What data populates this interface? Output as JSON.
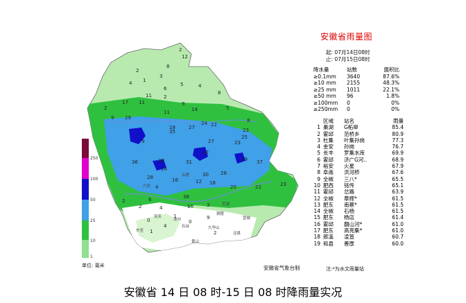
{
  "map": {
    "title": "安徽省雨量图",
    "period": {
      "start_label": "起: 07月14日08时",
      "end_label": "止: 07月15日08时"
    },
    "stats_header": [
      "降水量",
      "站数",
      "面积比"
    ],
    "stats": [
      [
        "≥0.1mm",
        "3640",
        "87.6%"
      ],
      [
        "≥10 mm",
        "2155",
        "48.3%"
      ],
      [
        "≥25 mm",
        "1011",
        "22.1%"
      ],
      [
        "≥50 mm",
        "96",
        "1.8%"
      ],
      [
        "≥100mm",
        "0",
        "0%"
      ],
      [
        "≥250mm",
        "0",
        "0%"
      ]
    ],
    "ranking_header": [
      "区域",
      "站名",
      "雨量"
    ],
    "ranking": [
      [
        "1",
        "巢湖",
        "G柘皋",
        "85.4"
      ],
      [
        "2",
        "霍邱",
        "范桥乡",
        "80.9"
      ],
      [
        "3",
        "杜集",
        "叶集孙岗",
        "77.3"
      ],
      [
        "4",
        "金安",
        "孙岗",
        "76.7"
      ],
      [
        "5",
        "长丰",
        "罗集水库",
        "69.9"
      ],
      [
        "6",
        "霍邱",
        "济广G河..",
        "68.9"
      ],
      [
        "7",
        "裕安",
        "火星",
        "67.9"
      ],
      [
        "8",
        "阜南",
        "洪河桥",
        "67.6"
      ],
      [
        "9",
        "全椒",
        "三八*",
        "65.5"
      ],
      [
        "10",
        "肥西",
        "铭传",
        "65.1"
      ],
      [
        "11",
        "霍邱",
        "岔路",
        "63.9"
      ],
      [
        "12",
        "全椒",
        "章辉*",
        "61.5"
      ],
      [
        "13",
        "肥东",
        "南蔡*",
        "61.5"
      ],
      [
        "14",
        "全椒",
        "石杨",
        "61.5"
      ],
      [
        "15",
        "肥东",
        "杨店",
        "61.4"
      ],
      [
        "16",
        "霍邱",
        "翻山河*",
        "61.0"
      ],
      [
        "17",
        "肥东",
        "高亮集*",
        "61.0"
      ],
      [
        "18",
        "郎溪",
        "凌笪",
        "60.7"
      ],
      [
        "19",
        "和县",
        "善厚",
        "60.0"
      ]
    ],
    "footnote": "注:*为水文雨量站",
    "legend": {
      "unit": "单位: 毫米",
      "ticks": [
        "250",
        "100",
        "50",
        "25",
        "10",
        "1"
      ],
      "colors": [
        "#7a0a3a",
        "#e000c8",
        "#1010c8",
        "#40a0e8",
        "#30c040",
        "#90e090"
      ]
    },
    "credit": "安徽省气象台制",
    "caption": "安徽省 14 日 08 时-15 日 08 时降雨量实况",
    "places": [
      "六安",
      "合肥",
      "芜湖",
      "宣城",
      "安庆",
      "九华山",
      "东至",
      "石台",
      "黄山",
      "池州",
      "铜陵",
      "泾县"
    ],
    "values": [
      "2",
      "12",
      "2",
      "8",
      "3",
      "4",
      "1",
      "5",
      "4",
      "6",
      "11",
      "2",
      "8",
      "2",
      "11",
      "17",
      "14",
      "9",
      "11",
      "9",
      "5",
      "8",
      "29",
      "23",
      "18",
      "24",
      "27",
      "22",
      "25",
      "23",
      "35",
      "9",
      "27",
      "36",
      "38",
      "31",
      "42",
      "28",
      "14",
      "39",
      "37",
      "30",
      "28",
      "12",
      "16",
      "18",
      "4",
      "20",
      "22",
      "23",
      "38",
      "6",
      "2",
      "4",
      "0",
      "2",
      "10",
      "3",
      "4",
      "1",
      "1",
      "0",
      "9",
      "2"
    ]
  }
}
